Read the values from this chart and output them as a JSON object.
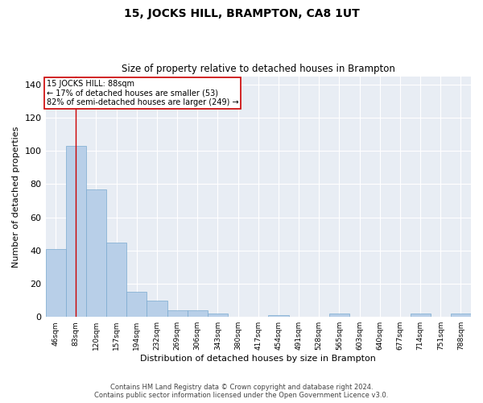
{
  "title": "15, JOCKS HILL, BRAMPTON, CA8 1UT",
  "subtitle": "Size of property relative to detached houses in Brampton",
  "xlabel": "Distribution of detached houses by size in Brampton",
  "ylabel": "Number of detached properties",
  "bar_color": "#b8cfe8",
  "bar_edge_color": "#7aaad0",
  "background_color": "#e8edf4",
  "categories": [
    "46sqm",
    "83sqm",
    "120sqm",
    "157sqm",
    "194sqm",
    "232sqm",
    "269sqm",
    "306sqm",
    "343sqm",
    "380sqm",
    "417sqm",
    "454sqm",
    "491sqm",
    "528sqm",
    "565sqm",
    "603sqm",
    "640sqm",
    "677sqm",
    "714sqm",
    "751sqm",
    "788sqm"
  ],
  "values": [
    41,
    103,
    77,
    45,
    15,
    10,
    4,
    4,
    2,
    0,
    0,
    1,
    0,
    0,
    2,
    0,
    0,
    0,
    2,
    0,
    2
  ],
  "vline_x": 1.0,
  "vline_color": "#cc0000",
  "annotation_text": "15 JOCKS HILL: 88sqm\n← 17% of detached houses are smaller (53)\n82% of semi-detached houses are larger (249) →",
  "annotation_box_color": "#ffffff",
  "annotation_box_edge_color": "#cc0000",
  "ylim": [
    0,
    145
  ],
  "yticks": [
    0,
    20,
    40,
    60,
    80,
    100,
    120,
    140
  ],
  "footer_line1": "Contains HM Land Registry data © Crown copyright and database right 2024.",
  "footer_line2": "Contains public sector information licensed under the Open Government Licence v3.0."
}
